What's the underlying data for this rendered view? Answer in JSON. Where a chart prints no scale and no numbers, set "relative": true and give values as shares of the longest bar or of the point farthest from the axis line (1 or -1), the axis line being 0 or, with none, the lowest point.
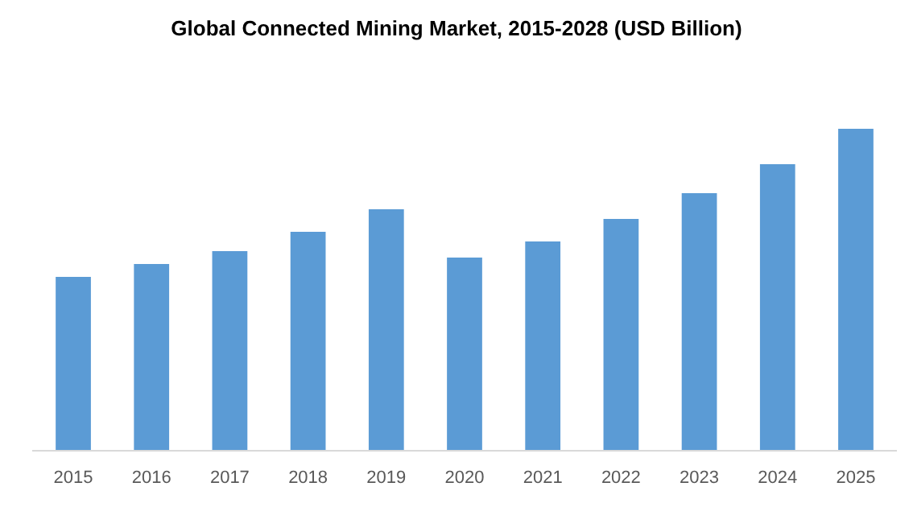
{
  "chart_data": {
    "type": "bar",
    "title": "Global Connected Mining Market, 2015-2028 (USD Billion)",
    "relative": true,
    "categories": [
      "2015",
      "2016",
      "2017",
      "2018",
      "2019",
      "2020",
      "2021",
      "2022",
      "2023",
      "2024",
      "2025"
    ],
    "values": [
      0.54,
      0.58,
      0.62,
      0.68,
      0.75,
      0.6,
      0.65,
      0.72,
      0.8,
      0.89,
      1.0
    ],
    "color": "#5b9bd5"
  }
}
